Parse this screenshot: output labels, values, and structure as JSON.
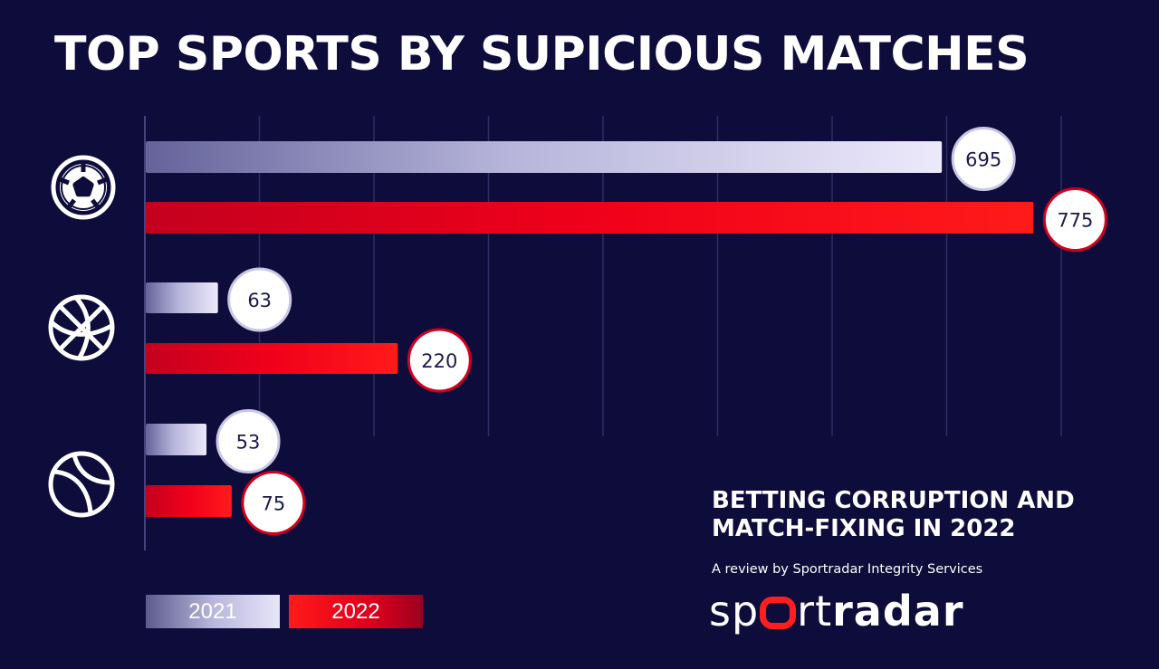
{
  "title": "TOP SPORTS BY SUPICIOUS MATCHES",
  "colors": {
    "background": "#0d0c3b",
    "series_2021": "#e8e6f8",
    "series_2022": "#ff1a1a",
    "gridline": "#2e2d63"
  },
  "chart_data": {
    "type": "bar",
    "orientation": "horizontal",
    "title": "TOP SPORTS BY SUPICIOUS MATCHES",
    "categories": [
      "football-icon",
      "basketball-icon",
      "tennis-icon"
    ],
    "series": [
      {
        "name": "2021",
        "values": [
          695,
          63,
          53
        ]
      },
      {
        "name": "2022",
        "values": [
          775,
          220,
          75
        ]
      }
    ],
    "xlim": [
      0,
      800
    ],
    "grid": true,
    "legend_position": "bottom-left"
  },
  "legend": {
    "label_2021": "2021",
    "label_2022": "2022"
  },
  "info": {
    "heading_line1": "BETTING CORRUPTION AND",
    "heading_line2": "MATCH-FIXING IN 2022",
    "subheading": "A review by Sportradar Integrity Services"
  },
  "logo": {
    "part1": "sp",
    "part2": "rt",
    "part3": "radar"
  }
}
